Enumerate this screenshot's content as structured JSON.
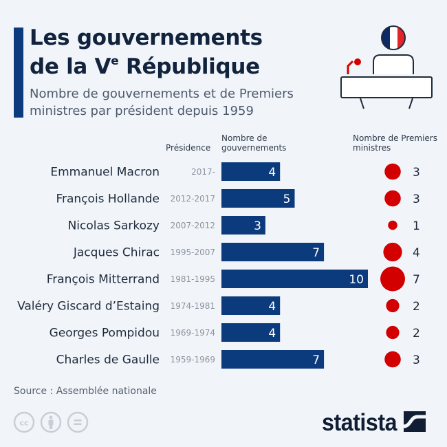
{
  "header": {
    "title_line1": "Les gouvernements",
    "title_line2_pre": "de la V",
    "title_line2_sup": "e",
    "title_line2_post": " République",
    "subtitle": "Nombre de gouvernements et de Premiers ministres par président depuis 1959",
    "illustration": "president-podium-france-flag-icon"
  },
  "columns": {
    "presidence": "Présidence",
    "governments": "Nombre de gouvernements",
    "prime_ministers": "Nombre de Premiers ministres"
  },
  "colors": {
    "bar": "#0b3a7d",
    "dot": "#d20000",
    "accent": "#0b3a7d"
  },
  "chart_data": {
    "type": "bar",
    "title": "Les gouvernements de la Ve République",
    "subtitle": "Nombre de gouvernements et de Premiers ministres par président depuis 1959",
    "categories": [
      "Emmanuel Macron",
      "François Hollande",
      "Nicolas Sarkozy",
      "Jacques Chirac",
      "François Mitterrand",
      "Valéry Giscard d’Estaing",
      "Georges Pompidou",
      "Charles de Gaulle"
    ],
    "presidency_years": [
      "2017-",
      "2012-2017",
      "2007-2012",
      "1995-2007",
      "1981-1995",
      "1974-1981",
      "1969-1974",
      "1959-1969"
    ],
    "series": [
      {
        "name": "Nombre de gouvernements",
        "type": "bar",
        "values": [
          4,
          5,
          3,
          7,
          10,
          4,
          4,
          7
        ]
      },
      {
        "name": "Nombre de Premiers ministres",
        "type": "bubble",
        "values": [
          3,
          3,
          1,
          4,
          7,
          2,
          2,
          3
        ]
      }
    ],
    "xlabel": "",
    "ylabel": "",
    "xlim": [
      0,
      10
    ],
    "grid": false,
    "legend": "column-headers-top"
  },
  "footer": {
    "source": "Source : Assemblée nationale",
    "license_icons": [
      "cc-icon",
      "attribution-icon",
      "no-derivatives-icon"
    ],
    "brand": "statista"
  }
}
